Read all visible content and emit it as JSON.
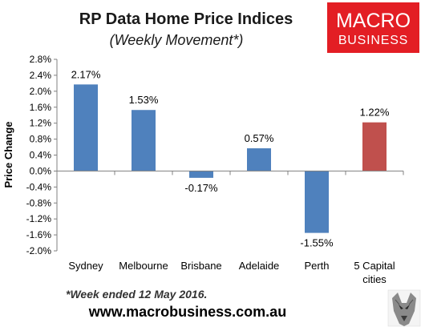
{
  "chart_data": {
    "type": "bar",
    "title": "RP Data Home Price Indices",
    "subtitle": "(Weekly Movement*)",
    "ylabel": "Price Change",
    "xlabel": "",
    "categories": [
      "Sydney",
      "Melbourne",
      "Brisbane",
      "Adelaide",
      "Perth",
      "5 Capital cities"
    ],
    "category_lines": [
      [
        "Sydney"
      ],
      [
        "Melbourne"
      ],
      [
        "Brisbane"
      ],
      [
        "Adelaide"
      ],
      [
        "Perth"
      ],
      [
        "5 Capital",
        "cities"
      ]
    ],
    "values": [
      2.17,
      1.53,
      -0.17,
      0.57,
      -1.55,
      1.22
    ],
    "data_labels": [
      "2.17%",
      "1.53%",
      "-0.17%",
      "0.57%",
      "-1.55%",
      "1.22%"
    ],
    "bar_colors": [
      "#4f81bd",
      "#4f81bd",
      "#4f81bd",
      "#4f81bd",
      "#4f81bd",
      "#c0504d"
    ],
    "ylim": [
      -2.0,
      2.8
    ],
    "yticks": [
      2.8,
      2.4,
      2.0,
      1.6,
      1.2,
      0.8,
      0.4,
      0.0,
      -0.4,
      -0.8,
      -1.2,
      -1.6,
      -2.0
    ],
    "ytick_labels": [
      "2.8%",
      "2.4%",
      "2.0%",
      "1.6%",
      "1.2%",
      "0.8%",
      "0.4%",
      "0.0%",
      "-0.4%",
      "-0.8%",
      "-1.2%",
      "-1.6%",
      "-2.0%"
    ],
    "grid": false,
    "legend": "none"
  },
  "footnote": "*Week ended 12 May 2016.",
  "website": "www.macrobusiness.com.au",
  "logo": {
    "line1": "MACRO",
    "line2": "BUSINESS",
    "bg_color": "#e31e24"
  },
  "watermark_icon": "wolf-head-icon"
}
